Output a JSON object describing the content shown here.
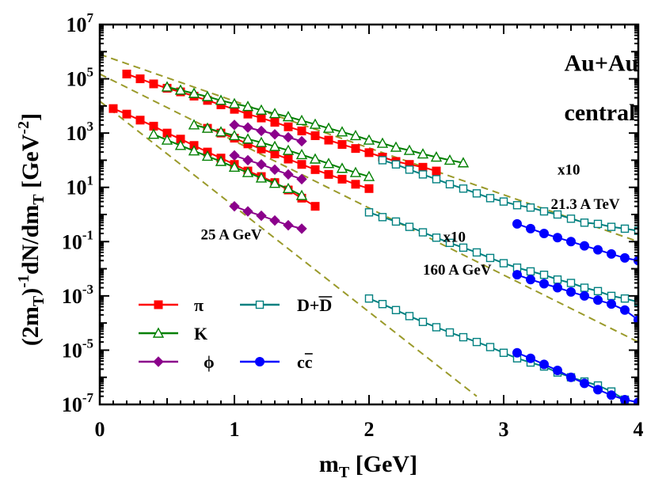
{
  "chart_data": {
    "type": "scatter",
    "title": "",
    "xlabel": "m",
    "xlabel_sub": "T",
    "xlabel_unit": "[GeV]",
    "ylabel_parts": {
      "a": "(2m",
      "a_sub": "T",
      "b": ")",
      "b_sup": "-1",
      "c": "dN/dm",
      "c_sub": "T",
      "d": " [GeV",
      "d_sup": "-2",
      "e": "]"
    },
    "xlim": [
      0,
      4
    ],
    "ylim_exp": [
      -7,
      7
    ],
    "x_ticks": [
      {
        "v": 0,
        "label": "0"
      },
      {
        "v": 1,
        "label": "1"
      },
      {
        "v": 2,
        "label": "2"
      },
      {
        "v": 3,
        "label": "3"
      },
      {
        "v": 4,
        "label": "4"
      }
    ],
    "y_ticks": [
      {
        "e": 7,
        "label": "10",
        "sup": "7"
      },
      {
        "e": 5,
        "label": "10",
        "sup": "5"
      },
      {
        "e": 3,
        "label": "10",
        "sup": "3"
      },
      {
        "e": 1,
        "label": "10",
        "sup": "1"
      },
      {
        "e": -1,
        "label": "10",
        "sup": "-1"
      },
      {
        "e": -3,
        "label": "10",
        "sup": "-3"
      },
      {
        "e": -5,
        "label": "10",
        "sup": "-5"
      },
      {
        "e": -7,
        "label": "10",
        "sup": "-7"
      }
    ],
    "annotations": [
      {
        "text": "Au+Au",
        "x": 3.45,
        "y": 200000.0,
        "size": 30
      },
      {
        "text": "central",
        "x": 3.45,
        "y": 3000.0,
        "size": 30
      },
      {
        "text": "x10",
        "x": 3.4,
        "y": 30,
        "size": 19
      },
      {
        "text": "21.3 A TeV",
        "x": 3.35,
        "y": 1.6,
        "size": 19
      },
      {
        "text": "x10",
        "x": 2.55,
        "y": 0.1,
        "size": 19
      },
      {
        "text": "160 A GeV",
        "x": 2.4,
        "y": 0.006,
        "size": 19
      },
      {
        "text": "25 A GeV",
        "x": 0.75,
        "y": 0.12,
        "size": 19
      }
    ],
    "legend": {
      "placement": "lower-left",
      "entries": [
        {
          "name": "π",
          "marker": "square-filled",
          "color": "#ff0000"
        },
        {
          "name": "K",
          "marker": "triangle-open",
          "color": "#008000"
        },
        {
          "name": "ϕ",
          "marker": "diamond-filled",
          "color": "#8b008b"
        },
        {
          "name": "D+D",
          "overline": true,
          "marker": "square-open",
          "color": "#008080"
        },
        {
          "name": "cc",
          "overline": true,
          "marker": "circle-filled",
          "color": "#0000ff"
        }
      ]
    },
    "fits": [
      {
        "name": "fit-21.3-ATeV",
        "color": "#9a9a2a",
        "x": [
          0,
          4
        ],
        "y": [
          800000.0,
          0.1
        ]
      },
      {
        "name": "fit-160-AGeV",
        "color": "#9a9a2a",
        "x": [
          0,
          4
        ],
        "y": [
          150000.0,
          2e-05
        ]
      },
      {
        "name": "fit-25-AGeV",
        "color": "#9a9a2a",
        "x": [
          0,
          2.8
        ],
        "y": [
          15000.0,
          2e-07
        ]
      }
    ],
    "series": [
      {
        "name": "pi-21.3ATeV",
        "species": "π",
        "color": "#ff0000",
        "marker": "square-filled",
        "x": [
          0.2,
          0.3,
          0.4,
          0.5,
          0.6,
          0.7,
          0.8,
          0.9,
          1.0,
          1.1,
          1.2,
          1.3,
          1.4,
          1.5,
          1.6,
          1.7,
          1.8,
          1.9,
          2.0,
          2.1,
          2.2,
          2.3,
          2.4,
          2.5
        ],
        "y": [
          150000.0,
          100000.0,
          65000.0,
          45000.0,
          33000.0,
          23000.0,
          16000.0,
          11000.0,
          7500.0,
          5000.0,
          3600.0,
          2500.0,
          1700.0,
          1200.0,
          800,
          550,
          380,
          270,
          190,
          130,
          90,
          70,
          55,
          40
        ]
      },
      {
        "name": "K-21.3ATeV",
        "species": "K",
        "color": "#008000",
        "marker": "triangle-open",
        "x": [
          0.5,
          0.6,
          0.7,
          0.8,
          0.9,
          1.0,
          1.1,
          1.2,
          1.3,
          1.4,
          1.5,
          1.6,
          1.7,
          1.8,
          1.9,
          2.0,
          2.1,
          2.2,
          2.3,
          2.4,
          2.5,
          2.6,
          2.7
        ],
        "y": [
          50000.0,
          38000.0,
          29000.0,
          22000.0,
          16000.0,
          12000.0,
          9500.0,
          7000.0,
          5200.0,
          4000.0,
          2900.0,
          2100.0,
          1500.0,
          1100.0,
          800,
          550,
          420,
          300,
          230,
          170,
          130,
          100,
          80
        ]
      },
      {
        "name": "phi-21.3ATeV",
        "species": "ϕ",
        "color": "#8b008b",
        "marker": "diamond-filled",
        "x": [
          1.0,
          1.1,
          1.2,
          1.3,
          1.4,
          1.5
        ],
        "y": [
          2000.0,
          1600.0,
          1200.0,
          900,
          700,
          500
        ]
      },
      {
        "name": "D-21.3ATeV",
        "species": "D+D",
        "color": "#008080",
        "marker": "square-open",
        "x": [
          2.1,
          2.2,
          2.3,
          2.4,
          2.5,
          2.6,
          2.7,
          2.8,
          2.9,
          3.0,
          3.1,
          3.2,
          3.3,
          3.4,
          3.5,
          3.6,
          3.7,
          3.8,
          3.9,
          4.0
        ],
        "y": [
          100,
          70,
          45,
          30,
          20,
          13,
          9,
          6,
          4,
          3,
          2.2,
          1.8,
          1.3,
          1.0,
          0.7,
          0.5,
          0.45,
          0.35,
          0.3,
          0.25
        ]
      },
      {
        "name": "cc-21.3ATeV",
        "species": "cc",
        "color": "#0000ff",
        "marker": "circle-filled",
        "x": [
          3.1,
          3.2,
          3.3,
          3.4,
          3.5,
          3.6,
          3.7,
          3.8,
          3.9,
          4.0
        ],
        "y": [
          0.45,
          0.3,
          0.2,
          0.14,
          0.1,
          0.07,
          0.05,
          0.035,
          0.025,
          0.02
        ]
      },
      {
        "name": "pi-160AGeV",
        "species": "π",
        "color": "#ff0000",
        "marker": "square-filled",
        "x": [
          0.8,
          0.9,
          1.0,
          1.1,
          1.2,
          1.3,
          1.4,
          1.5,
          1.6,
          1.7,
          1.8,
          1.9,
          2.0
        ],
        "y": [
          1500.0,
          1000.0,
          650,
          400,
          260,
          170,
          110,
          70,
          45,
          30,
          20,
          13,
          9
        ]
      },
      {
        "name": "K-160AGeV",
        "species": "K",
        "color": "#008000",
        "marker": "triangle-open",
        "x": [
          0.7,
          0.8,
          0.9,
          1.0,
          1.1,
          1.2,
          1.3,
          1.4,
          1.5,
          1.6,
          1.7,
          1.8,
          1.9,
          2.0
        ],
        "y": [
          2000.0,
          1500.0,
          1100.0,
          800,
          600,
          450,
          320,
          230,
          160,
          110,
          75,
          50,
          35,
          25
        ]
      },
      {
        "name": "phi-160AGeV",
        "species": "ϕ",
        "color": "#8b008b",
        "marker": "diamond-filled",
        "x": [
          1.0,
          1.1,
          1.2,
          1.3,
          1.4,
          1.5
        ],
        "y": [
          150,
          100,
          70,
          45,
          30,
          20
        ]
      },
      {
        "name": "D-160AGeV",
        "species": "D+D",
        "color": "#008080",
        "marker": "square-open",
        "x": [
          2.0,
          2.1,
          2.2,
          2.3,
          2.4,
          2.5,
          2.6,
          2.7,
          2.8,
          2.9,
          3.0,
          3.1,
          3.2,
          3.3,
          3.4,
          3.5,
          3.6,
          3.7,
          3.8,
          3.9,
          4.0
        ],
        "y": [
          1.2,
          0.8,
          0.55,
          0.35,
          0.22,
          0.14,
          0.09,
          0.06,
          0.04,
          0.025,
          0.016,
          0.011,
          0.008,
          0.006,
          0.004,
          0.003,
          0.002,
          0.0015,
          0.001,
          0.0008,
          0.0006
        ]
      },
      {
        "name": "cc-160AGeV",
        "species": "cc",
        "color": "#0000ff",
        "marker": "circle-filled",
        "x": [
          3.1,
          3.2,
          3.3,
          3.4,
          3.5,
          3.6,
          3.7,
          3.8,
          3.9,
          4.0
        ],
        "y": [
          0.006,
          0.004,
          0.0028,
          0.002,
          0.0014,
          0.001,
          0.0007,
          0.0005,
          0.0003,
          0.00013
        ]
      },
      {
        "name": "pi-25AGeV",
        "species": "π",
        "color": "#ff0000",
        "marker": "square-filled",
        "x": [
          0.1,
          0.2,
          0.3,
          0.4,
          0.5,
          0.6,
          0.7,
          0.8,
          0.9,
          1.0,
          1.1,
          1.2,
          1.3,
          1.4,
          1.5,
          1.6
        ],
        "y": [
          8000.0,
          5000.0,
          3000.0,
          1800.0,
          1000.0,
          600,
          350,
          200,
          120,
          70,
          40,
          25,
          15,
          8,
          4,
          2
        ]
      },
      {
        "name": "K-25AGeV",
        "species": "K",
        "color": "#008000",
        "marker": "triangle-open",
        "x": [
          0.4,
          0.5,
          0.6,
          0.7,
          0.8,
          0.9,
          1.0,
          1.1,
          1.2,
          1.3,
          1.4,
          1.5
        ],
        "y": [
          900,
          550,
          350,
          220,
          140,
          90,
          55,
          35,
          22,
          14,
          9,
          5
        ]
      },
      {
        "name": "phi-25AGeV",
        "species": "ϕ",
        "color": "#8b008b",
        "marker": "diamond-filled",
        "x": [
          1.0,
          1.1,
          1.2,
          1.3,
          1.4,
          1.5
        ],
        "y": [
          2,
          1.3,
          0.9,
          0.6,
          0.4,
          0.3
        ]
      },
      {
        "name": "D-25AGeV",
        "species": "D+D",
        "color": "#008080",
        "marker": "square-open",
        "x": [
          2.0,
          2.1,
          2.2,
          2.3,
          2.4,
          2.5,
          2.6,
          2.7,
          2.8,
          2.9,
          3.0,
          3.1,
          3.2,
          3.3,
          3.4,
          3.5,
          3.6,
          3.7,
          3.8,
          3.9
        ],
        "y": [
          0.0008,
          0.0005,
          0.0003,
          0.00018,
          0.00011,
          7e-05,
          4.5e-05,
          3e-05,
          2e-05,
          1.3e-05,
          8e-06,
          5e-06,
          3.5e-06,
          2.5e-06,
          1.5e-06,
          1e-06,
          7e-07,
          5e-07,
          3e-07,
          1.5e-07
        ]
      },
      {
        "name": "cc-25AGeV",
        "species": "cc",
        "color": "#0000ff",
        "marker": "circle-filled",
        "x": [
          3.1,
          3.2,
          3.3,
          3.4,
          3.5,
          3.6,
          3.7,
          3.8,
          3.9,
          4.0
        ],
        "y": [
          8e-06,
          5e-06,
          3e-06,
          1.8e-06,
          1e-06,
          6e-07,
          3.5e-07,
          2.2e-07,
          1.5e-07,
          1.2e-07
        ]
      }
    ]
  }
}
